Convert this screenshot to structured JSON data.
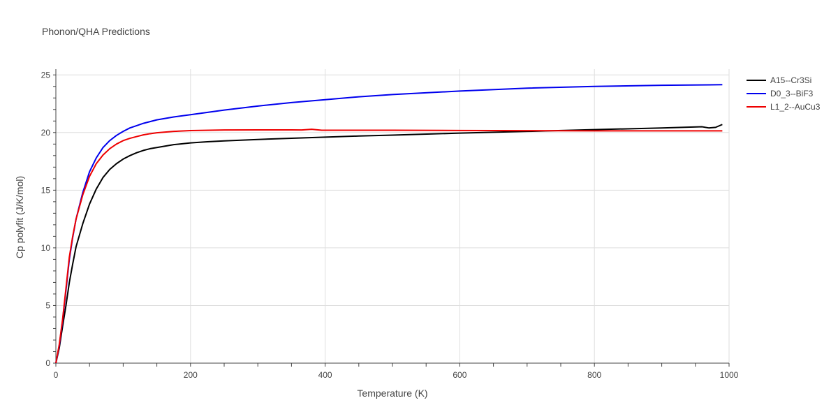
{
  "chart_data": {
    "type": "line",
    "title": "Phonon/QHA Predictions",
    "xlabel": "Temperature (K)",
    "ylabel": "Cp polyfit (J/K/mol)",
    "xlim": [
      0,
      1000
    ],
    "ylim": [
      0,
      25.5
    ],
    "x_ticks": [
      "0",
      "200",
      "400",
      "600",
      "800",
      "1000"
    ],
    "y_ticks": [
      "0",
      "5",
      "10",
      "15",
      "20",
      "25"
    ],
    "grid": true,
    "legend_position": "top-right",
    "series": [
      {
        "name": "A15--Cr3Si",
        "color": "#000000",
        "x": [
          0,
          5,
          10,
          15,
          20,
          25,
          30,
          40,
          50,
          60,
          70,
          80,
          90,
          100,
          110,
          120,
          130,
          140,
          150,
          175,
          200,
          225,
          250,
          300,
          350,
          400,
          450,
          500,
          600,
          700,
          800,
          900,
          960,
          970,
          980,
          990
        ],
        "y": [
          0,
          1.3,
          3.2,
          5.0,
          7.0,
          8.6,
          10.1,
          12.1,
          13.8,
          15.1,
          16.1,
          16.8,
          17.3,
          17.7,
          18.0,
          18.25,
          18.45,
          18.6,
          18.7,
          18.95,
          19.1,
          19.2,
          19.28,
          19.4,
          19.5,
          19.6,
          19.7,
          19.78,
          19.95,
          20.1,
          20.25,
          20.4,
          20.5,
          20.4,
          20.45,
          20.7
        ]
      },
      {
        "name": "D0_3--BiF3",
        "color": "#0000ee",
        "x": [
          0,
          5,
          10,
          15,
          20,
          25,
          30,
          40,
          50,
          60,
          70,
          80,
          90,
          100,
          110,
          120,
          130,
          140,
          150,
          175,
          200,
          250,
          300,
          350,
          400,
          450,
          500,
          600,
          700,
          800,
          900,
          990
        ],
        "y": [
          0,
          1.5,
          3.7,
          6.3,
          9.0,
          10.9,
          12.5,
          14.8,
          16.6,
          17.8,
          18.7,
          19.3,
          19.75,
          20.1,
          20.4,
          20.6,
          20.8,
          20.95,
          21.1,
          21.35,
          21.55,
          21.95,
          22.3,
          22.6,
          22.85,
          23.1,
          23.3,
          23.6,
          23.85,
          24.0,
          24.1,
          24.15
        ]
      },
      {
        "name": "L1_2--AuCu3",
        "color": "#ee0000",
        "x": [
          0,
          5,
          10,
          15,
          20,
          25,
          30,
          40,
          50,
          60,
          70,
          80,
          90,
          100,
          110,
          120,
          130,
          140,
          150,
          175,
          200,
          250,
          300,
          350,
          365,
          380,
          395,
          450,
          500,
          600,
          700,
          800,
          900,
          990
        ],
        "y": [
          0,
          1.6,
          3.8,
          6.5,
          9.2,
          11.0,
          12.5,
          14.6,
          16.2,
          17.3,
          18.05,
          18.6,
          19.0,
          19.3,
          19.5,
          19.65,
          19.8,
          19.9,
          19.98,
          20.1,
          20.17,
          20.22,
          20.23,
          20.23,
          20.22,
          20.28,
          20.2,
          20.2,
          20.2,
          20.18,
          20.16,
          20.15,
          20.15,
          20.15
        ]
      }
    ]
  }
}
